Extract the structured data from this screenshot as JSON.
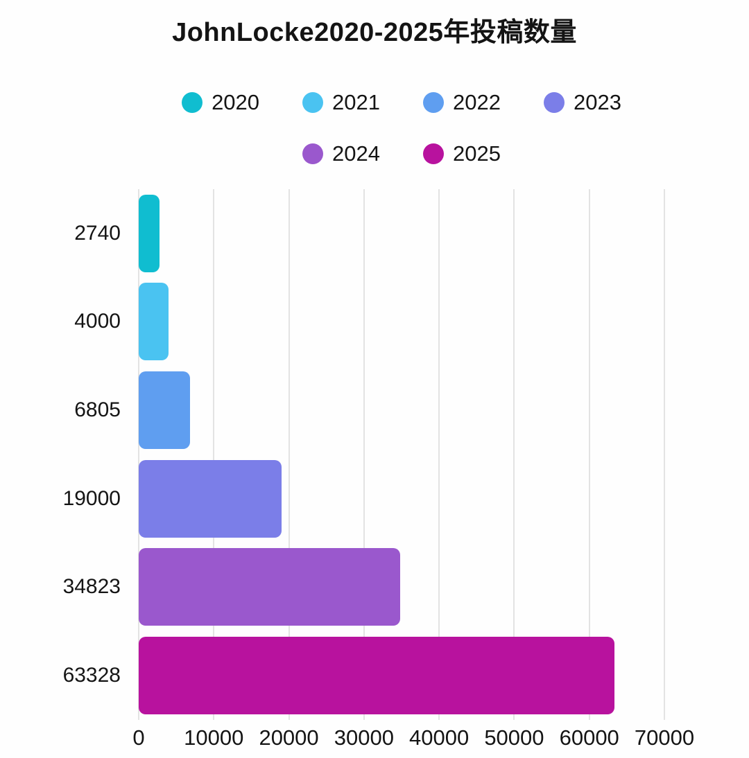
{
  "chart_data": {
    "type": "bar",
    "orientation": "horizontal",
    "title": "JohnLocke2020-2025年投稿数量",
    "categories": [
      "2740",
      "4000",
      "6805",
      "19000",
      "34823",
      "63328"
    ],
    "values": [
      2740,
      4000,
      6805,
      19000,
      34823,
      63328
    ],
    "series": [
      {
        "name": "2020",
        "value": 2740,
        "color": "#10bdd0"
      },
      {
        "name": "2021",
        "value": 4000,
        "color": "#4ac3f1"
      },
      {
        "name": "2022",
        "value": 6805,
        "color": "#5f9ef0"
      },
      {
        "name": "2023",
        "value": 19000,
        "color": "#7b7ee8"
      },
      {
        "name": "2024",
        "value": 34823,
        "color": "#9a58cd"
      },
      {
        "name": "2025",
        "value": 63328,
        "color": "#b8129e"
      }
    ],
    "x_ticks": [
      "0",
      "10000",
      "20000",
      "30000",
      "40000",
      "50000",
      "60000",
      "70000"
    ],
    "xlim": [
      0,
      70000
    ],
    "xlabel": "",
    "ylabel": "",
    "grid": "vertical",
    "legend_position": "top",
    "legend_rows": [
      [
        "2020",
        "2021",
        "2022",
        "2023"
      ],
      [
        "2024",
        "2025"
      ]
    ]
  },
  "colors": {
    "background": "#fefefe",
    "gridline": "#e3e3e3",
    "text": "#141414"
  }
}
